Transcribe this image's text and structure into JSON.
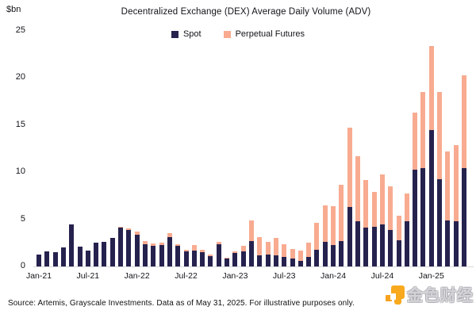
{
  "title": "Decentralized Exchange (DEX) Average Daily Volume (ADV)",
  "y_axis": {
    "unit_label": "$bn",
    "ticks": [
      0,
      5,
      10,
      15,
      20,
      25
    ]
  },
  "legend": [
    {
      "label": "Spot",
      "color": "#26224e"
    },
    {
      "label": "Perpetual Futures",
      "color": "#f8ab90"
    }
  ],
  "chart_data": {
    "type": "bar",
    "stacked": true,
    "title": "Decentralized Exchange (DEX) Average Daily Volume (ADV)",
    "ylabel": "$bn",
    "ylim": [
      0,
      25
    ],
    "grid": false,
    "legend_position": "top-center",
    "x": [
      "Jan-21",
      "Feb-21",
      "Mar-21",
      "Apr-21",
      "May-21",
      "Jun-21",
      "Jul-21",
      "Aug-21",
      "Sep-21",
      "Oct-21",
      "Nov-21",
      "Dec-21",
      "Jan-22",
      "Feb-22",
      "Mar-22",
      "Apr-22",
      "May-22",
      "Jun-22",
      "Jul-22",
      "Aug-22",
      "Sep-22",
      "Oct-22",
      "Nov-22",
      "Dec-22",
      "Jan-23",
      "Feb-23",
      "Mar-23",
      "Apr-23",
      "May-23",
      "Jun-23",
      "Jul-23",
      "Aug-23",
      "Sep-23",
      "Oct-23",
      "Nov-23",
      "Dec-23",
      "Jan-24",
      "Feb-24",
      "Mar-24",
      "Apr-24",
      "May-24",
      "Jun-24",
      "Jul-24",
      "Aug-24",
      "Sep-24",
      "Oct-24",
      "Nov-24",
      "Dec-24",
      "Jan-25",
      "Feb-25",
      "Mar-25",
      "Apr-25",
      "May-25"
    ],
    "x_tick_labels": [
      "Jan-21",
      "Jul-21",
      "Jan-22",
      "Jul-22",
      "Jan-23",
      "Jul-23",
      "Jan-24",
      "Jul-24",
      "Jan-25"
    ],
    "x_tick_every": 6,
    "series": [
      {
        "name": "Spot",
        "color": "#26224e",
        "values": [
          1.3,
          1.6,
          1.55,
          2.0,
          4.5,
          2.1,
          1.65,
          2.5,
          2.6,
          3.0,
          4.1,
          3.9,
          3.4,
          2.4,
          2.2,
          2.25,
          3.1,
          2.2,
          1.6,
          1.7,
          1.5,
          1.1,
          2.4,
          0.85,
          1.4,
          1.6,
          2.7,
          1.2,
          1.3,
          1.2,
          1.05,
          0.85,
          0.55,
          1.0,
          1.8,
          2.6,
          2.3,
          2.7,
          6.3,
          4.8,
          4.1,
          4.2,
          4.5,
          3.85,
          2.8,
          4.8,
          10.3,
          10.4,
          14.5,
          9.3,
          4.9,
          4.8,
          10.4
        ]
      },
      {
        "name": "Perpetual Futures",
        "color": "#f8ab90",
        "values": [
          0,
          0,
          0,
          0,
          0,
          0,
          0,
          0,
          0,
          0,
          0.1,
          0.1,
          0.3,
          0.3,
          0.25,
          0.25,
          0.4,
          0.2,
          0.2,
          0.55,
          0.3,
          0.15,
          0.2,
          0.1,
          0.2,
          0.6,
          2.2,
          1.9,
          1.35,
          1.8,
          1.3,
          1.0,
          1.1,
          1.55,
          2.85,
          3.85,
          4.1,
          6.0,
          8.4,
          6.9,
          5.1,
          3.7,
          5.25,
          4.65,
          2.6,
          2.95,
          6.0,
          8.1,
          8.9,
          9.2,
          7.3,
          8.1,
          9.9
        ]
      }
    ]
  },
  "footer": {
    "source": "Source: Artemis, Grayscale Investments. Data as of May 31, 2025. For illustrative purposes only."
  },
  "watermark": {
    "text": "金色财经"
  }
}
